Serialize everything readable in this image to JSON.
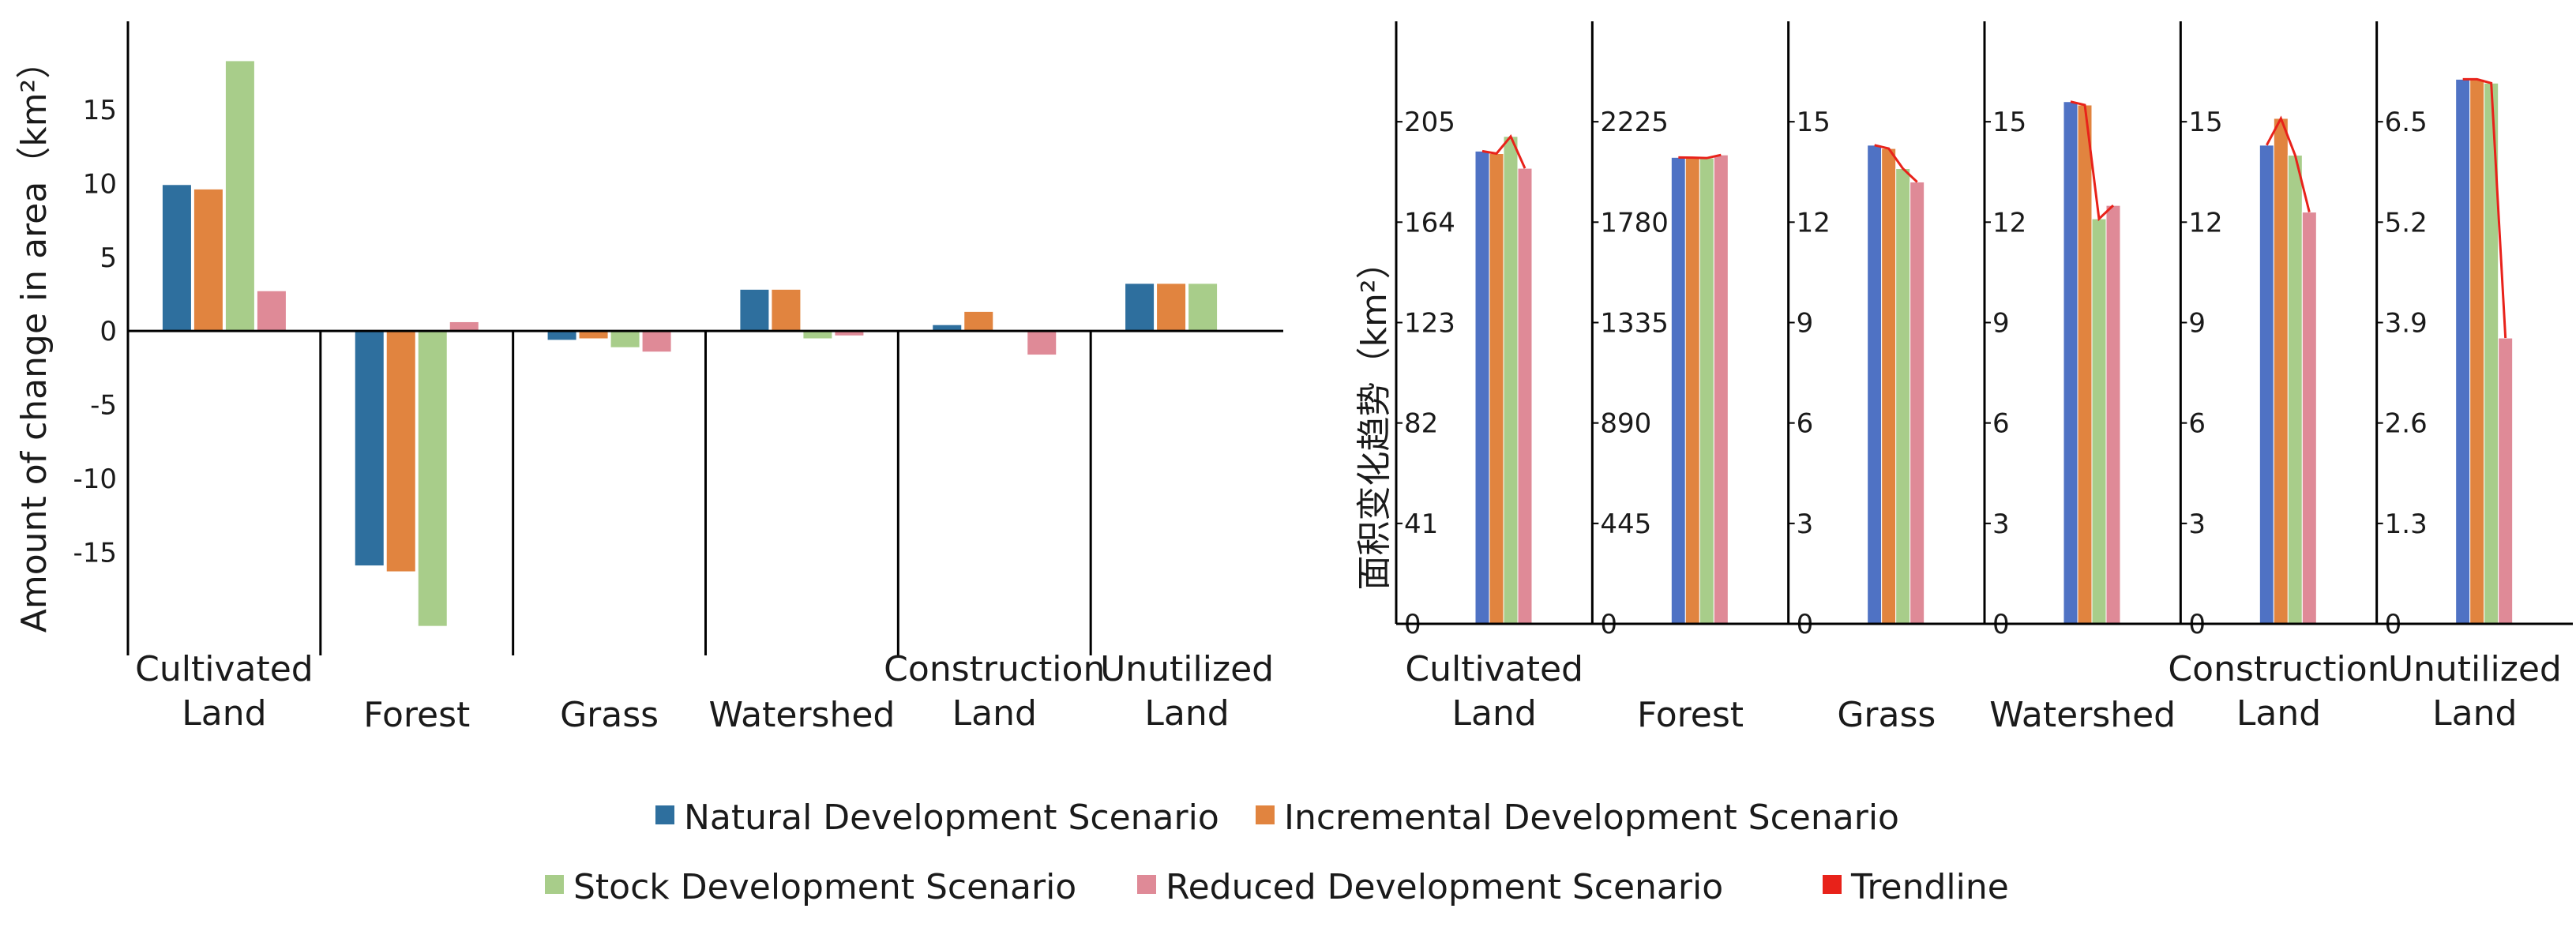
{
  "colors": {
    "natural": "#2e6f9e",
    "incremental": "#e1843f",
    "stock": "#a8cd8a",
    "reduced": "#df8a97",
    "trend": "#e8221a",
    "natural_right": "#4f72c4"
  },
  "legend": [
    {
      "label": "Natural Development Scenario",
      "color_key": "natural"
    },
    {
      "label": "Incremental Development Scenario",
      "color_key": "incremental"
    },
    {
      "label": "Stock Development Scenario",
      "color_key": "stock"
    },
    {
      "label": "Reduced Development Scenario",
      "color_key": "reduced"
    },
    {
      "label": "Trendline",
      "color_key": "trend"
    }
  ],
  "chart_data": [
    {
      "type": "bar",
      "title": "",
      "ylabel": "Amount of change in area（km²）",
      "ylim": [
        -22,
        21
      ],
      "yticks": [
        15,
        10,
        5,
        0,
        -5,
        -10,
        -15
      ],
      "categories": [
        [
          "Cultivated",
          "Land"
        ],
        [
          "Forest"
        ],
        [
          "Grass"
        ],
        [
          "Watershed"
        ],
        [
          "Construction",
          "Land"
        ],
        [
          "Unutilized",
          "Land"
        ]
      ],
      "series": [
        {
          "name": "Natural Development Scenario",
          "values": [
            9.9,
            -15.9,
            -0.6,
            2.8,
            0.4,
            3.2
          ]
        },
        {
          "name": "Incremental Development Scenario",
          "values": [
            9.6,
            -16.3,
            -0.5,
            2.8,
            1.3,
            3.2
          ]
        },
        {
          "name": "Stock Development Scenario",
          "values": [
            18.3,
            -20.0,
            -1.1,
            -0.5,
            0.0,
            3.2
          ]
        },
        {
          "name": "Reduced Development Scenario",
          "values": [
            2.7,
            0.6,
            -1.4,
            -0.3,
            -1.6,
            0.0
          ]
        }
      ]
    },
    {
      "type": "bar",
      "title": "",
      "ylabel": "面积变化趋势（km²）",
      "trendline": "Trendline",
      "panels": [
        {
          "category": [
            "Cultivated",
            "Land"
          ],
          "ylim": [
            0,
            246
          ],
          "yticks": [
            "0",
            "41",
            "82",
            "123",
            "164",
            "205"
          ],
          "values": [
            193,
            192,
            199,
            186
          ]
        },
        {
          "category": [
            "Forest"
          ],
          "ylim": [
            0,
            2670
          ],
          "yticks": [
            "0",
            "445",
            "890",
            "1335",
            "1780",
            "2225"
          ],
          "values": [
            2067,
            2066,
            2064,
            2078
          ]
        },
        {
          "category": [
            "Grass"
          ],
          "ylim": [
            0,
            18
          ],
          "yticks": [
            "0",
            "3",
            "6",
            "9",
            "12",
            "15"
          ],
          "values": [
            14.3,
            14.2,
            13.6,
            13.2
          ]
        },
        {
          "category": [
            "Watershed"
          ],
          "ylim": [
            0,
            18
          ],
          "yticks": [
            "0",
            "3",
            "6",
            "9",
            "12",
            "15"
          ],
          "values": [
            15.6,
            15.5,
            12.1,
            12.5
          ]
        },
        {
          "category": [
            "Construction",
            "Land"
          ],
          "ylim": [
            0,
            18
          ],
          "yticks": [
            "0",
            "3",
            "6",
            "9",
            "12",
            "15"
          ],
          "values": [
            14.3,
            15.1,
            14.0,
            12.3
          ]
        },
        {
          "category": [
            "Unutilized",
            "Land"
          ],
          "ylim": [
            0,
            7.8
          ],
          "yticks": [
            "0",
            "1.3",
            "2.6",
            "3.9",
            "5.2",
            "6.5"
          ],
          "values": [
            7.05,
            7.05,
            7.0,
            3.7
          ]
        }
      ]
    }
  ]
}
